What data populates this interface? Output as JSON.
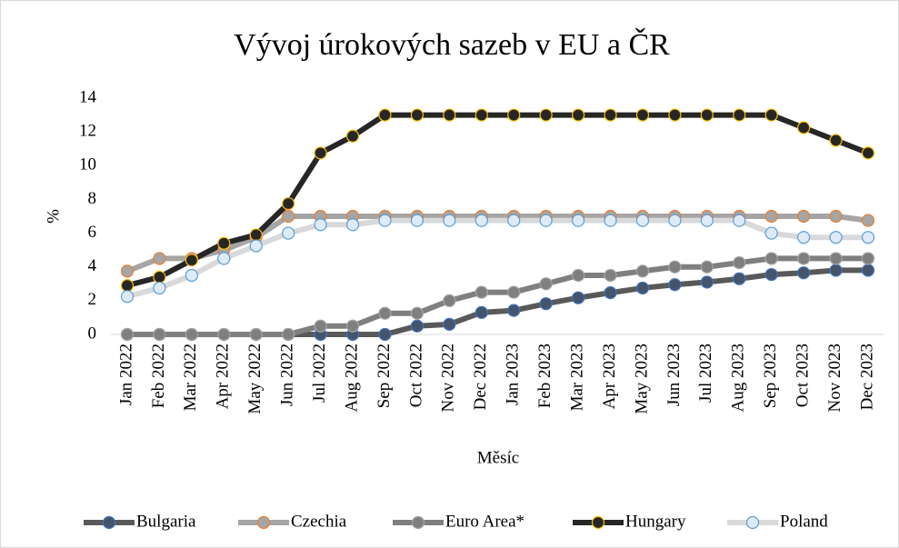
{
  "chart_data": {
    "type": "line",
    "title": "Vývoj úrokových sazeb v EU a ČR",
    "x_label": "Měsíc",
    "y_label": "%",
    "categories": [
      "Jan 2022",
      "Feb 2022",
      "Mar 2022",
      "Apr 2022",
      "May 2022",
      "Jun 2022",
      "Jul 2022",
      "Aug 2022",
      "Sep 2022",
      "Oct 2022",
      "Nov 2022",
      "Dec 2022",
      "Jan 2023",
      "Feb 2023",
      "Mar 2023",
      "Apr 2023",
      "May 2023",
      "Jun 2023",
      "Jul 2023",
      "Aug 2023",
      "Sep 2023",
      "Oct 2023",
      "Nov 2023",
      "Dec 2023"
    ],
    "ylim": [
      0,
      14
    ],
    "yticks": [
      0,
      2,
      4,
      6,
      8,
      10,
      12,
      14
    ],
    "grid": false,
    "legend": "bottom",
    "series": [
      {
        "name": "Bulgaria",
        "color": "#595959",
        "marker_fill": "#44546a",
        "marker_edge": "#4472c4",
        "values": [
          0,
          0,
          0,
          0,
          0,
          0,
          0,
          0,
          0,
          0.5,
          0.6,
          1.3,
          1.42,
          1.82,
          2.17,
          2.47,
          2.75,
          2.95,
          3.1,
          3.3,
          3.55,
          3.65,
          3.8,
          3.8
        ]
      },
      {
        "name": "Czechia",
        "color": "#a5a5a5",
        "marker_fill": "#a5a5a5",
        "marker_edge": "#ed7d31",
        "values": [
          3.75,
          4.5,
          4.5,
          5.0,
          5.75,
          7,
          7,
          7,
          7,
          7,
          7,
          7,
          7,
          7,
          7,
          7,
          7,
          7,
          7,
          7,
          7,
          7,
          7,
          6.75
        ]
      },
      {
        "name": "Euro Area*",
        "color": "#7f7f7f",
        "marker_fill": "#7f7f7f",
        "marker_edge": "#a5a5a5",
        "values": [
          0,
          0,
          0,
          0,
          0,
          0,
          0.5,
          0.5,
          1.25,
          1.25,
          2,
          2.5,
          2.5,
          3,
          3.5,
          3.5,
          3.75,
          4,
          4,
          4.25,
          4.5,
          4.5,
          4.5,
          4.5
        ]
      },
      {
        "name": "Hungary",
        "color": "#262626",
        "marker_fill": "#262626",
        "marker_edge": "#ffc000",
        "values": [
          2.9,
          3.4,
          4.4,
          5.4,
          5.9,
          7.75,
          10.75,
          11.75,
          13,
          13,
          13,
          13,
          13,
          13,
          13,
          13,
          13,
          13,
          13,
          13,
          13,
          12.25,
          11.5,
          10.75
        ]
      },
      {
        "name": "Poland",
        "color": "#d9d9d9",
        "marker_fill": "#deebf7",
        "marker_edge": "#5b9bd5",
        "values": [
          2.25,
          2.75,
          3.5,
          4.5,
          5.25,
          6,
          6.5,
          6.5,
          6.75,
          6.75,
          6.75,
          6.75,
          6.75,
          6.75,
          6.75,
          6.75,
          6.75,
          6.75,
          6.75,
          6.75,
          6,
          5.75,
          5.75,
          5.75
        ]
      }
    ]
  }
}
